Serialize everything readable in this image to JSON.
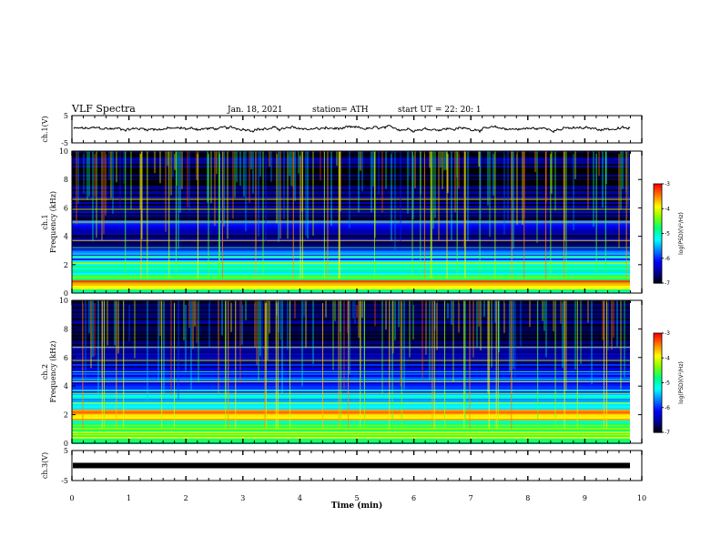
{
  "header": {
    "title": "VLF Spectra",
    "date": "Jan. 18, 2021",
    "station": "station= ATH",
    "start": "start  UT  =   22: 20: 1"
  },
  "chart_data": [
    {
      "type": "line",
      "panel": "ch1-waveform",
      "ylabel": "ch.1(V)",
      "ylim": [
        -5,
        5
      ],
      "yticks": [
        "5",
        "-5"
      ],
      "xlim": [
        0,
        10
      ],
      "approx_level": 0.2,
      "approx_noise": 0.6,
      "color": "#000000"
    },
    {
      "type": "heatmap",
      "panel": "ch1-spectrogram",
      "ylabel": "ch.1\nFrequency (kHz)",
      "ylim": [
        0,
        10
      ],
      "yticks": [
        "0",
        "2",
        "4",
        "6",
        "8",
        "10"
      ],
      "xlim": [
        0,
        9.8
      ],
      "colorbar": {
        "label": "log(PSD)(V²/Hz)",
        "range": [
          -7,
          -3
        ],
        "ticks": [
          "-3",
          "-4",
          "-5",
          "-6",
          "-7"
        ]
      },
      "bands_khz": [
        {
          "f0": 0.0,
          "f1": 0.3,
          "level": -5.2
        },
        {
          "f0": 0.3,
          "f1": 0.9,
          "level": -3.6
        },
        {
          "f0": 0.9,
          "f1": 1.5,
          "level": -4.8
        },
        {
          "f0": 1.5,
          "f1": 2.2,
          "level": -5.0
        },
        {
          "f0": 2.2,
          "f1": 3.2,
          "level": -5.6
        },
        {
          "f0": 3.2,
          "f1": 4.5,
          "level": -6.4
        },
        {
          "f0": 4.5,
          "f1": 5.2,
          "level": -6.2
        },
        {
          "f0": 5.2,
          "f1": 6.8,
          "level": -6.5
        },
        {
          "f0": 6.8,
          "f1": 10.0,
          "level": -6.8
        }
      ],
      "lines_khz": [
        0.7,
        1.2,
        2.1,
        2.6,
        3.2,
        3.7,
        5.0,
        5.9,
        6.6
      ]
    },
    {
      "type": "heatmap",
      "panel": "ch2-spectrogram",
      "ylabel": "ch.2\nFrequency (kHz)",
      "ylim": [
        0,
        10
      ],
      "yticks": [
        "0",
        "2",
        "4",
        "6",
        "8",
        "10"
      ],
      "xlim": [
        0,
        9.8
      ],
      "colorbar": {
        "label": "log(PSD)(V²/Hz)",
        "range": [
          -7,
          -3
        ],
        "ticks": [
          "-3",
          "-4",
          "-5",
          "-6",
          "-7"
        ]
      },
      "bands_khz": [
        {
          "f0": 0.0,
          "f1": 0.3,
          "level": -5.0
        },
        {
          "f0": 0.3,
          "f1": 1.0,
          "level": -4.4
        },
        {
          "f0": 1.0,
          "f1": 1.6,
          "level": -4.6
        },
        {
          "f0": 1.6,
          "f1": 2.4,
          "level": -3.8
        },
        {
          "f0": 2.4,
          "f1": 3.4,
          "level": -5.2
        },
        {
          "f0": 3.4,
          "f1": 4.2,
          "level": -5.7
        },
        {
          "f0": 4.2,
          "f1": 5.4,
          "level": -5.9
        },
        {
          "f0": 5.4,
          "f1": 6.9,
          "level": -6.3
        },
        {
          "f0": 6.9,
          "f1": 10.0,
          "level": -6.8
        }
      ],
      "lines_khz": [
        0.6,
        1.3,
        2.0,
        2.8,
        3.5,
        4.3,
        5.0,
        5.8,
        6.7
      ]
    },
    {
      "type": "line",
      "panel": "ch3-waveform",
      "ylabel": "ch.3(V)",
      "ylim": [
        -5,
        5
      ],
      "yticks": [
        "5",
        "-5"
      ],
      "xlim": [
        0,
        9.8
      ],
      "approx_level": 0.0,
      "color": "#000000"
    }
  ],
  "xaxis": {
    "label": "Time  (min)",
    "ticks": [
      "0",
      "1",
      "2",
      "3",
      "4",
      "5",
      "6",
      "7",
      "8",
      "9",
      "10"
    ],
    "range": [
      0,
      10
    ]
  },
  "colors": {
    "colormap": [
      "#000000",
      "#00008f",
      "#0000ff",
      "#0080ff",
      "#00ffff",
      "#00ff80",
      "#80ff00",
      "#ffff00",
      "#ff8000",
      "#ff0000",
      "#ffffff"
    ]
  }
}
